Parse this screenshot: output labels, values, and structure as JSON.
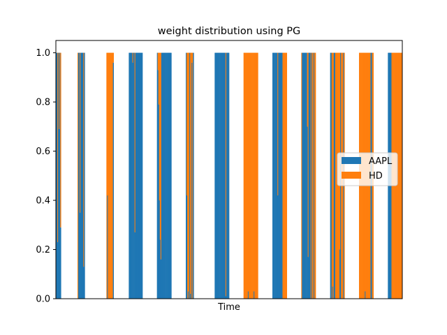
{
  "chart_data": {
    "type": "bar",
    "stacked": true,
    "title": "weight distribution using PG",
    "xlabel": "Time",
    "ylabel": "",
    "ylim": [
      0,
      1.05
    ],
    "yticks": [
      "0.0",
      "0.2",
      "0.4",
      "0.6",
      "0.8",
      "1.0"
    ],
    "legend_position": "center-right",
    "grid": false,
    "colors": {
      "AAPL": "#1f77b4",
      "HD": "#ff7f0e"
    },
    "series": [
      {
        "name": "AAPL",
        "values": [
          1.0,
          1.0,
          0.23,
          1.0,
          0.69,
          1.0,
          0.29,
          0.0,
          0.0,
          0.0,
          0.0,
          0.0,
          0.0,
          0.0,
          0.0,
          0.0,
          0.0,
          0.0,
          0.0,
          0.0,
          0.0,
          0.0,
          0.0,
          0.0,
          0.0,
          0.0,
          0.0,
          0.0,
          0.0,
          0.0,
          0.0,
          1.0,
          1.0,
          0.35,
          1.0,
          1.0,
          1.0,
          1.0,
          0.13,
          1.0,
          0.0,
          0.0,
          0.0,
          0.0,
          0.0,
          0.0,
          0.0,
          0.0,
          0.0,
          0.0,
          0.0,
          0.0,
          0.0,
          0.0,
          0.0,
          0.0,
          0.0,
          0.0,
          0.0,
          0.0,
          0.0,
          0.0,
          0.0,
          0.0,
          0.0,
          0.0,
          0.0,
          0.0,
          0.0,
          0.0,
          0.0,
          0.42,
          0.0,
          0.0,
          0.0,
          0.0,
          0.0,
          0.0,
          0.0,
          0.96,
          0.0,
          0.0,
          0.0,
          0.0,
          0.0,
          0.0,
          0.0,
          0.0,
          0.0,
          0.0,
          0.0,
          0.0,
          0.0,
          0.0,
          0.0,
          0.0,
          0.0,
          0.0,
          0.0,
          0.0,
          0.0,
          1.0,
          1.0,
          1.0,
          1.0,
          1.0,
          0.96,
          1.0,
          1.0,
          0.27,
          1.0,
          1.0,
          1.0,
          1.0,
          1.0,
          1.0,
          1.0,
          1.0,
          1.0,
          1.0,
          0.0,
          0.0,
          0.0,
          0.0,
          0.0,
          0.0,
          0.0,
          0.0,
          0.0,
          0.0,
          0.0,
          0.0,
          0.0,
          0.0,
          0.0,
          0.0,
          0.0,
          0.0,
          0.0,
          0.0,
          1.0,
          0.93,
          0.79,
          0.4,
          0.24,
          0.16,
          1.0,
          1.0,
          1.0,
          1.0,
          1.0,
          1.0,
          1.0,
          1.0,
          1.0,
          1.0,
          1.0,
          1.0,
          1.0,
          1.0,
          0.0,
          0.0,
          0.0,
          0.0,
          0.0,
          0.0,
          0.0,
          0.0,
          0.0,
          0.0,
          0.0,
          0.0,
          0.0,
          0.0,
          0.0,
          0.0,
          0.0,
          0.0,
          0.0,
          0.0,
          1.0,
          0.42,
          0.0,
          0.03,
          0.0,
          1.0,
          0.02,
          0.0,
          0.96,
          0.0,
          1.0,
          0.0,
          0.0,
          0.0,
          0.0,
          0.0,
          0.0,
          0.0,
          0.0,
          0.0,
          0.0,
          0.0,
          0.0,
          0.0,
          0.0,
          0.0,
          0.0,
          0.0,
          0.0,
          0.0,
          0.0,
          0.0,
          0.0,
          0.0,
          0.0,
          0.0,
          0.0,
          0.0,
          0.0,
          0.0,
          1.0,
          1.0,
          1.0,
          1.0,
          1.0,
          1.0,
          1.0,
          1.0,
          1.0,
          1.0,
          1.0,
          1.0,
          1.0,
          1.0,
          1.0,
          0.01,
          1.0,
          1.0,
          1.0,
          1.0,
          0.0,
          0.0,
          0.0,
          0.0,
          0.0,
          0.0,
          0.0,
          0.0,
          0.0,
          0.0,
          0.0,
          0.0,
          0.0,
          0.0,
          0.0,
          0.0,
          0.0,
          0.0,
          0.0,
          0.0,
          0.0,
          0.0,
          0.0,
          0.0,
          0.0,
          0.0,
          0.03,
          0.0,
          0.0,
          0.0,
          0.0,
          0.0,
          0.0,
          0.0,
          0.03,
          0.0,
          0.0,
          0.0,
          0.0,
          0.0,
          0.0,
          0.0,
          0.0,
          0.0,
          0.0,
          0.0,
          0.0,
          0.0,
          0.0,
          0.0,
          0.0,
          0.0,
          0.0,
          0.0,
          0.0,
          0.0,
          0.0,
          0.0,
          0.0,
          0.0,
          1.0,
          1.0,
          1.0,
          1.0,
          1.0,
          1.0,
          1.0,
          0.42,
          1.0,
          1.0,
          1.0,
          1.0,
          1.0,
          1.0,
          0.0,
          0.0,
          0.0,
          0.0,
          0.0,
          0.0,
          0.0,
          0.0,
          0.0,
          0.0,
          0.0,
          0.0,
          0.0,
          0.0,
          0.0,
          0.0,
          0.0,
          0.0,
          0.0,
          0.0,
          0.0,
          0.0,
          0.0,
          0.0,
          0.0,
          0.0,
          0.0,
          1.0,
          1.0,
          1.0,
          1.0,
          1.0,
          1.0,
          1.0,
          0.7,
          0.17,
          1.0,
          1.0,
          1.0,
          0.0,
          1.0,
          0.0,
          0.0,
          1.0,
          0.0,
          0.0,
          0.0,
          0.0,
          0.0,
          0.0,
          0.0,
          0.0,
          0.0,
          0.0,
          0.0,
          0.0,
          0.0,
          0.0,
          0.0,
          0.0,
          0.0,
          0.0,
          0.0,
          0.0,
          0.0,
          0.0,
          1.0,
          1.0,
          0.0,
          0.05,
          0.0,
          1.0,
          1.0,
          0.0,
          0.0,
          0.0,
          0.0,
          0.0,
          0.0,
          0.2,
          1.0,
          0.0,
          0.0,
          0.0,
          1.0,
          0.0,
          0.0,
          0.0,
          0.0,
          0.0,
          0.0,
          0.0,
          0.0,
          0.0,
          0.0,
          0.0,
          0.0,
          0.0,
          0.0,
          0.0,
          0.0,
          0.0,
          0.0,
          0.0,
          0.0,
          0.0,
          0.0,
          0.0,
          0.0,
          0.0,
          0.0,
          0.0,
          0.0,
          0.0,
          0.03,
          0.0,
          0.0,
          0.0,
          0.0,
          0.0,
          0.0,
          0.0,
          1.0,
          1.0,
          0.0,
          0.0,
          0.0,
          0.0,
          0.0,
          0.0,
          0.0,
          0.0,
          0.0,
          0.0,
          0.0,
          0.0,
          0.0,
          0.0,
          0.0,
          0.0,
          0.0,
          0.0,
          0.0,
          0.0,
          0.0,
          0.0,
          1.0,
          1.0,
          1.0,
          1.0,
          1.0,
          0.0,
          0.0,
          0.0,
          0.0,
          0.0,
          0.0,
          0.0,
          0.0,
          0.0,
          0.0,
          0.0,
          0.0,
          0.0,
          0.0,
          0.0
        ]
      },
      {
        "name": "HD",
        "values": [
          0.0,
          0.0,
          0.77,
          0.0,
          0.31,
          0.0,
          0.71,
          0.0,
          0.0,
          0.0,
          0.0,
          0.0,
          0.0,
          0.0,
          0.0,
          0.0,
          0.0,
          0.0,
          0.0,
          0.0,
          0.0,
          0.0,
          0.0,
          0.0,
          0.0,
          0.0,
          0.0,
          0.0,
          0.0,
          0.0,
          1.0,
          0.0,
          0.0,
          0.65,
          0.0,
          0.0,
          0.0,
          0.0,
          0.87,
          0.0,
          0.0,
          0.0,
          0.0,
          0.0,
          0.0,
          0.0,
          0.0,
          0.0,
          0.0,
          0.0,
          0.0,
          0.0,
          0.0,
          0.0,
          0.0,
          0.0,
          0.0,
          0.0,
          0.0,
          0.0,
          0.0,
          0.0,
          0.0,
          0.0,
          0.0,
          0.0,
          0.0,
          0.0,
          0.0,
          0.0,
          1.0,
          0.58,
          1.0,
          1.0,
          1.0,
          1.0,
          1.0,
          1.0,
          1.0,
          0.04,
          0.0,
          0.0,
          0.0,
          0.0,
          0.0,
          0.0,
          0.0,
          0.0,
          0.0,
          0.0,
          0.0,
          0.0,
          0.0,
          0.0,
          0.0,
          0.0,
          0.0,
          0.0,
          0.0,
          0.0,
          0.0,
          0.0,
          0.0,
          0.0,
          0.0,
          0.0,
          0.04,
          0.0,
          0.0,
          0.73,
          0.0,
          0.0,
          0.0,
          0.0,
          0.0,
          0.0,
          0.0,
          0.0,
          0.0,
          0.0,
          0.0,
          0.0,
          0.0,
          0.0,
          0.0,
          0.0,
          0.0,
          0.0,
          0.0,
          0.0,
          0.0,
          0.0,
          0.0,
          0.0,
          0.0,
          0.0,
          0.0,
          0.0,
          0.0,
          0.0,
          0.0,
          0.07,
          0.21,
          0.6,
          0.76,
          0.84,
          0.0,
          0.0,
          0.0,
          0.0,
          0.0,
          0.0,
          0.0,
          0.0,
          0.0,
          0.0,
          0.0,
          0.0,
          0.0,
          0.0,
          0.0,
          0.0,
          0.0,
          0.0,
          0.0,
          0.0,
          0.0,
          0.0,
          0.0,
          0.0,
          0.0,
          0.0,
          0.0,
          0.0,
          0.0,
          0.0,
          0.0,
          0.0,
          0.0,
          0.0,
          0.0,
          0.58,
          1.0,
          0.97,
          1.0,
          0.0,
          0.98,
          1.0,
          0.04,
          1.0,
          0.0,
          0.0,
          0.0,
          0.0,
          0.0,
          0.0,
          0.0,
          0.0,
          0.0,
          0.0,
          0.0,
          0.0,
          0.0,
          0.0,
          0.0,
          0.0,
          0.0,
          0.0,
          0.0,
          0.0,
          0.0,
          0.0,
          0.0,
          0.0,
          0.0,
          0.0,
          0.0,
          0.0,
          0.0,
          0.0,
          0.0,
          0.0,
          0.0,
          0.0,
          0.0,
          0.0,
          0.0,
          0.0,
          0.0,
          0.0,
          0.0,
          0.0,
          0.0,
          0.0,
          0.0,
          0.99,
          0.0,
          0.0,
          0.0,
          0.0,
          0.0,
          0.0,
          0.0,
          0.0,
          0.0,
          0.0,
          0.0,
          0.0,
          0.0,
          0.0,
          0.0,
          0.0,
          0.0,
          0.0,
          0.0,
          0.0,
          0.0,
          0.0,
          0.0,
          0.0,
          1.0,
          1.0,
          1.0,
          1.0,
          1.0,
          1.0,
          0.97,
          1.0,
          1.0,
          1.0,
          1.0,
          1.0,
          1.0,
          1.0,
          0.97,
          1.0,
          1.0,
          1.0,
          1.0,
          1.0,
          0.0,
          0.0,
          0.0,
          0.0,
          0.0,
          0.0,
          0.0,
          0.0,
          0.0,
          0.0,
          0.0,
          0.0,
          0.0,
          0.0,
          0.0,
          0.0,
          0.0,
          0.0,
          0.0,
          0.0,
          0.0,
          0.0,
          0.0,
          0.0,
          0.0,
          0.0,
          0.0,
          0.58,
          0.0,
          0.0,
          0.0,
          0.0,
          0.0,
          0.0,
          1.0,
          1.0,
          1.0,
          1.0,
          1.0,
          1.0,
          0.0,
          0.0,
          0.0,
          0.0,
          0.0,
          0.0,
          0.0,
          0.0,
          0.0,
          0.0,
          0.0,
          0.0,
          0.0,
          0.0,
          0.0,
          0.0,
          0.0,
          0.0,
          0.0,
          0.0,
          1.0,
          0.0,
          0.0,
          0.0,
          0.0,
          0.0,
          0.0,
          0.0,
          0.3,
          0.83,
          0.0,
          0.0,
          0.0,
          1.0,
          0.0,
          1.0,
          1.0,
          0.0,
          1.0,
          1.0,
          0.0,
          0.0,
          0.0,
          0.0,
          0.0,
          0.0,
          0.0,
          0.0,
          0.0,
          0.0,
          0.0,
          0.0,
          0.0,
          0.0,
          0.0,
          0.0,
          0.0,
          0.0,
          0.0,
          0.0,
          0.0,
          0.0,
          1.0,
          0.95,
          1.0,
          0.0,
          0.0,
          1.0,
          1.0,
          1.0,
          1.0,
          1.0,
          1.0,
          0.8,
          0.0,
          1.0,
          1.0,
          1.0,
          0.0,
          1.0,
          0.0,
          0.0,
          0.0,
          0.0,
          0.0,
          0.0,
          0.0,
          0.0,
          0.0,
          0.0,
          0.0,
          0.0,
          0.0,
          0.0,
          0.0,
          0.0,
          0.0,
          0.0,
          0.0,
          0.0,
          1.0,
          1.0,
          1.0,
          1.0,
          1.0,
          1.0,
          1.0,
          1.0,
          0.97,
          1.0,
          1.0,
          1.0,
          1.0,
          1.0,
          1.0,
          1.0,
          0.0,
          0.0,
          1.0,
          1.0,
          0.0,
          0.0,
          0.0,
          0.0,
          0.0,
          0.0,
          0.0,
          0.0,
          0.0,
          0.0,
          0.0,
          0.0,
          0.0,
          0.0,
          0.0,
          0.0,
          0.0,
          0.0,
          0.0,
          0.0,
          0.0,
          0.0,
          0.0,
          0.0,
          0.0,
          1.0,
          1.0,
          1.0,
          1.0,
          1.0,
          1.0,
          1.0,
          1.0,
          1.0,
          1.0,
          1.0,
          1.0,
          1.0,
          1.0,
          1.0
        ]
      }
    ]
  }
}
